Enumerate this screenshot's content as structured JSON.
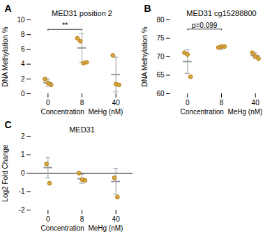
{
  "chart_data": [
    {
      "type": "scatter",
      "panel_label": "A",
      "title": "MED31 position 2",
      "xlabel": "Concentration  MeHg (nM)",
      "ylabel": "DNA Methylation %",
      "categories": [
        "0",
        "8",
        "40"
      ],
      "values": [
        [
          2.0,
          1.45,
          1.2
        ],
        [
          7.5,
          7.1,
          4.15,
          4.25
        ],
        [
          5.2,
          1.3,
          1.2
        ]
      ],
      "means": [
        1.5,
        6.2,
        2.6
      ],
      "sds": [
        0.5,
        1.95,
        2.35
      ],
      "ylim": [
        0,
        10
      ],
      "yticks": [
        0,
        2,
        4,
        6,
        8,
        10
      ],
      "grid": false,
      "color": "#d4a843",
      "edge_color": "#b8750a",
      "error_color": "#999999",
      "annotations": [
        {
          "text": "**",
          "x1": "0",
          "x2": "8",
          "y": 8.7
        }
      ]
    },
    {
      "type": "scatter",
      "panel_label": "B",
      "title": "MED31 cg15288800",
      "xlabel": "Concentration  MeHg (nM)",
      "ylabel": "DNA Methylation %",
      "categories": [
        "0",
        "8",
        "40"
      ],
      "values": [
        [
          71.1,
          70.6,
          64.6
        ],
        [
          72.5,
          72.8,
          72.8
        ],
        [
          71.1,
          70.1,
          69.5
        ]
      ],
      "means": [
        68.7,
        72.5,
        70.3
      ],
      "sds": [
        3.2,
        0.55,
        0.75
      ],
      "ylim": [
        60,
        80
      ],
      "yticks": [
        60,
        65,
        70,
        75,
        80
      ],
      "grid": false,
      "color": "#d4a843",
      "edge_color": "#b8750a",
      "error_color": "#999999",
      "annotations": [
        {
          "text": "p=0.099",
          "x1": "0",
          "x2": "8",
          "y": 77.5
        }
      ]
    },
    {
      "type": "scatter",
      "panel_label": "C",
      "title": "MED31",
      "xlabel": "Concentration  MeHg (nM)",
      "ylabel": "Log2 Fold Change",
      "categories": [
        "0",
        "8",
        "40"
      ],
      "values": [
        [
          0.5,
          -0.55
        ],
        [
          0.0,
          -0.35,
          -0.4
        ],
        [
          -0.25,
          -1.3
        ]
      ],
      "means": [
        0.3,
        -0.3,
        -0.45
      ],
      "sds": [
        0.55,
        0.25,
        0.7
      ],
      "ylim": [
        -2,
        2
      ],
      "yticks": [
        -2,
        -1,
        0,
        1,
        2
      ],
      "grid": false,
      "color": "#d4a843",
      "edge_color": "#b8750a",
      "error_color": "#999999",
      "hline": 0
    }
  ]
}
